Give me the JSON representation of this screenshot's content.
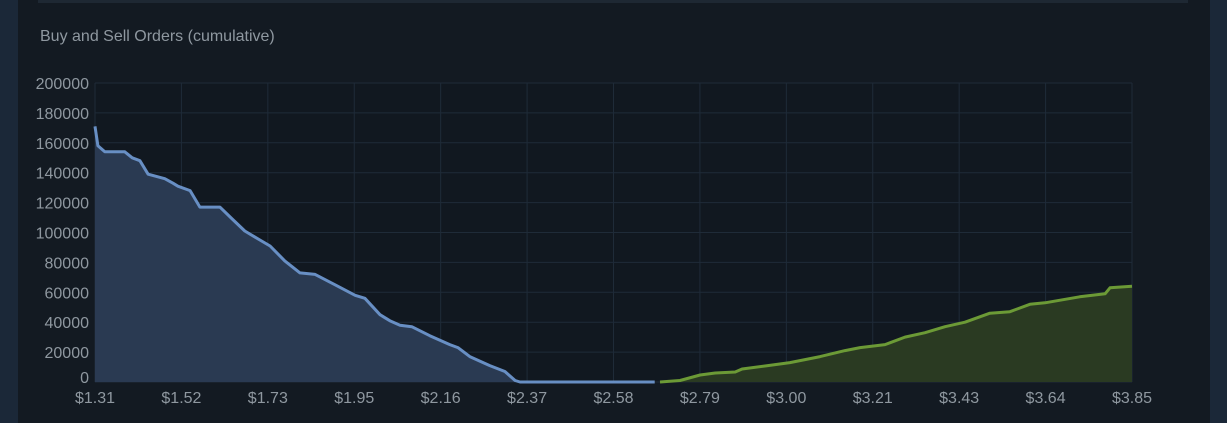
{
  "chart_data": {
    "type": "area",
    "title": "Buy and Sell Orders (cumulative)",
    "xlabel": "",
    "ylabel": "",
    "xlim": [
      1.31,
      3.85
    ],
    "ylim": [
      0,
      200000
    ],
    "grid": true,
    "x_tick_labels": [
      "$1.31",
      "$1.52",
      "$1.73",
      "$1.95",
      "$2.16",
      "$2.37",
      "$2.58",
      "$2.79",
      "$3.00",
      "$3.21",
      "$3.43",
      "$3.64",
      "$3.85"
    ],
    "y_tick_labels": [
      "0",
      "20000",
      "40000",
      "60000",
      "80000",
      "100000",
      "120000",
      "140000",
      "160000",
      "180000",
      "200000"
    ],
    "series": [
      {
        "color": "#688fc4",
        "fill": "#2a3a52",
        "x": [
          1.31,
          1.317,
          1.334,
          1.383,
          1.401,
          1.42,
          1.44,
          1.481,
          1.501,
          1.513,
          1.543,
          1.567,
          1.616,
          1.646,
          1.677,
          1.714,
          1.739,
          1.775,
          1.812,
          1.849,
          1.898,
          1.947,
          1.971,
          2.008,
          2.032,
          2.057,
          2.086,
          2.13,
          2.179,
          2.199,
          2.228,
          2.277,
          2.314,
          2.339,
          2.351,
          2.681
        ],
        "y": [
          171000,
          158000,
          154000,
          154000,
          150000,
          148000,
          139000,
          136000,
          133000,
          131000,
          128000,
          117000,
          117000,
          109000,
          101000,
          95000,
          91000,
          81000,
          73000,
          72000,
          65000,
          58000,
          56000,
          45000,
          41000,
          38000,
          37000,
          31000,
          25000,
          23000,
          17000,
          11000,
          7000,
          1000,
          0,
          0
        ]
      },
      {
        "color": "#6c9a36",
        "fill": "#2a3a22",
        "x": [
          2.694,
          2.743,
          2.792,
          2.829,
          2.878,
          2.895,
          2.951,
          3.012,
          3.086,
          3.147,
          3.184,
          3.245,
          3.294,
          3.343,
          3.392,
          3.441,
          3.502,
          3.551,
          3.6,
          3.637,
          3.722,
          3.784,
          3.796,
          3.85
        ],
        "y": [
          0,
          1000,
          4700,
          6000,
          6700,
          8700,
          10700,
          13000,
          17000,
          21000,
          23000,
          25000,
          30000,
          33000,
          37000,
          40000,
          46000,
          47000,
          52000,
          53000,
          57000,
          59000,
          63000,
          64000
        ]
      }
    ]
  }
}
